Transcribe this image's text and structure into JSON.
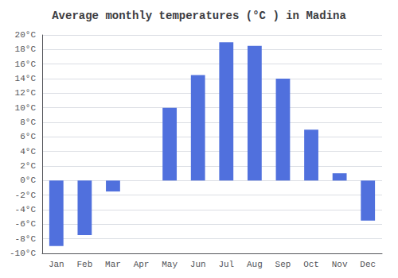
{
  "chart_data": {
    "type": "bar",
    "title": "Average monthly temperatures (°C ) in Madina",
    "categories": [
      "Jan",
      "Feb",
      "Mar",
      "Apr",
      "May",
      "Jun",
      "Jul",
      "Aug",
      "Sep",
      "Oct",
      "Nov",
      "Dec"
    ],
    "values": [
      -9.0,
      -7.5,
      -1.5,
      0.0,
      10.0,
      14.5,
      19.0,
      18.5,
      14.0,
      7.0,
      1.0,
      -5.5
    ],
    "ylim": [
      -10,
      20
    ],
    "yticks": [
      {
        "value": -10,
        "label": "-10°C"
      },
      {
        "value": -8,
        "label": "-8°C"
      },
      {
        "value": -6,
        "label": "-6°C"
      },
      {
        "value": -4,
        "label": "-4°C"
      },
      {
        "value": -2,
        "label": "-2°C"
      },
      {
        "value": 0,
        "label": "0°C"
      },
      {
        "value": 2,
        "label": "2°C"
      },
      {
        "value": 4,
        "label": "4°C"
      },
      {
        "value": 6,
        "label": "6°C"
      },
      {
        "value": 8,
        "label": "8°C"
      },
      {
        "value": 10,
        "label": "10°C"
      },
      {
        "value": 12,
        "label": "12°C"
      },
      {
        "value": 14,
        "label": "14°C"
      },
      {
        "value": 16,
        "label": "16°C"
      },
      {
        "value": 18,
        "label": "18°C"
      },
      {
        "value": 20,
        "label": "20°C"
      }
    ],
    "grid": true
  }
}
